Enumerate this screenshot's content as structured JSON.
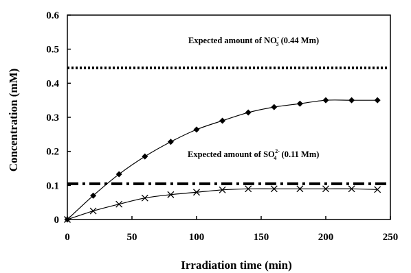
{
  "chart_data": {
    "type": "line",
    "title": "",
    "xlabel": "Irradiation time (min)",
    "ylabel": "Concentration (mM)",
    "xlim": [
      0,
      250
    ],
    "ylim": [
      0,
      0.6
    ],
    "xticks": [
      "0",
      "50",
      "100",
      "150",
      "200",
      "250"
    ],
    "yticks": [
      "0",
      "0.1",
      "0.2",
      "0.3",
      "0.4",
      "0.5",
      "0.6"
    ],
    "grid": false,
    "series": [
      {
        "marker": "diamond",
        "x": [
          0,
          20,
          40,
          60,
          80,
          100,
          120,
          140,
          160,
          180,
          200,
          220,
          240
        ],
        "y": [
          0,
          0.07,
          0.133,
          0.185,
          0.228,
          0.264,
          0.29,
          0.314,
          0.33,
          0.34,
          0.35,
          0.35,
          0.35
        ]
      },
      {
        "marker": "x",
        "x": [
          0,
          20,
          40,
          60,
          80,
          100,
          120,
          140,
          160,
          180,
          200,
          220,
          240
        ],
        "y": [
          0,
          0.025,
          0.045,
          0.063,
          0.073,
          0.08,
          0.087,
          0.09,
          0.09,
          0.09,
          0.09,
          0.09,
          0.088
        ]
      }
    ],
    "reference_lines": [
      {
        "y": 0.445,
        "style": "dotted",
        "label": {
          "prefix": "Expected amount of NO",
          "sub": "3",
          "sup": "-",
          "suffix": " (0.44 Mm)"
        }
      },
      {
        "y": 0.105,
        "style": "dash-dot",
        "label": {
          "prefix": "Expected amount of SO",
          "sub": "4",
          "sup": "2-",
          "suffix": " (0.11 Mm)"
        }
      }
    ]
  }
}
